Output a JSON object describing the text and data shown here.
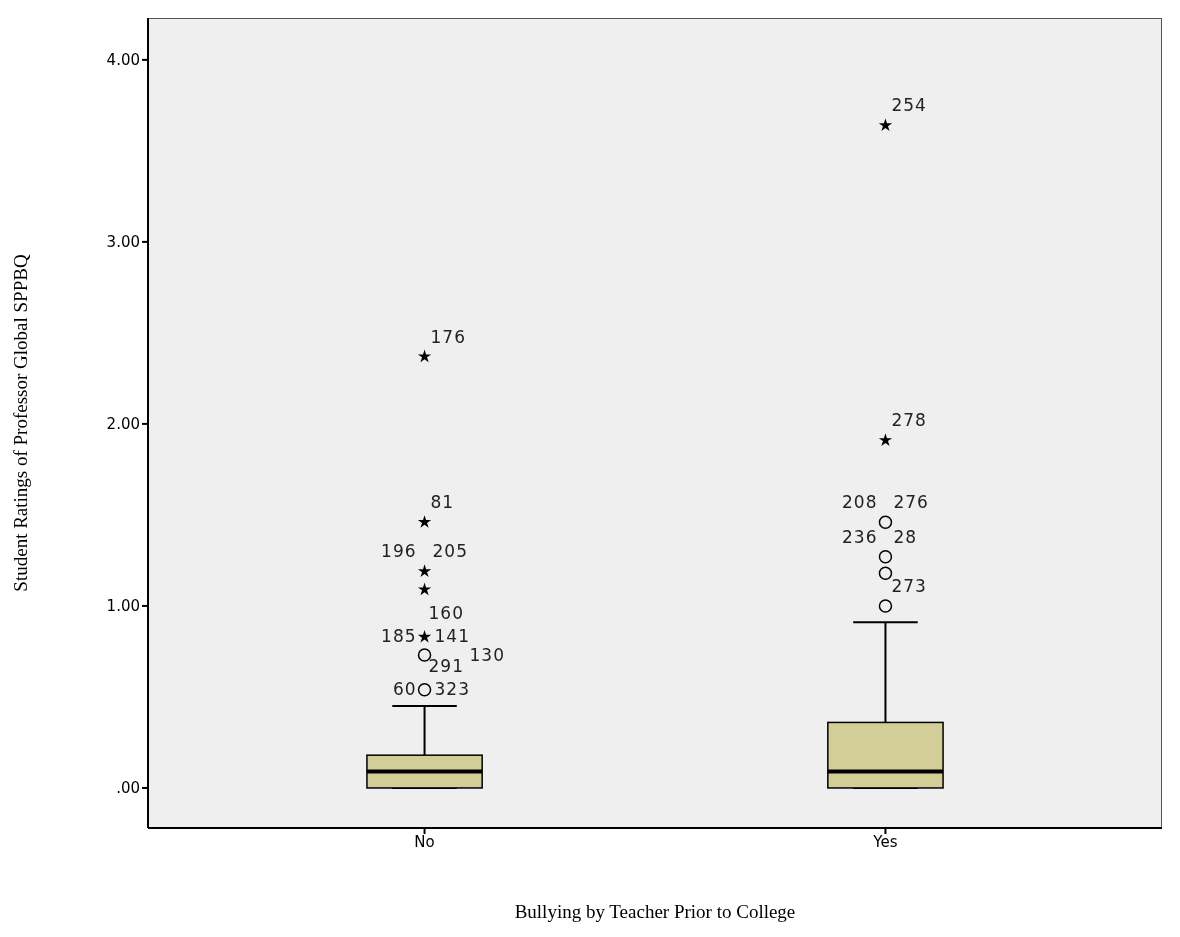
{
  "chart_data": {
    "type": "box",
    "categories": [
      "No",
      "Yes"
    ],
    "xlabel": "Bullying by Teacher Prior to College",
    "ylabel": "Student Ratings of Professor Global SPPBQ",
    "ylim": [
      -0.22,
      4.23
    ],
    "yticks": [
      {
        "value": 0,
        "label": ".00"
      },
      {
        "value": 1,
        "label": "1.00"
      },
      {
        "value": 2,
        "label": "2.00"
      },
      {
        "value": 3,
        "label": "3.00"
      },
      {
        "value": 4,
        "label": "4.00"
      }
    ],
    "grid": false,
    "series": [
      {
        "type": "box",
        "color": "#d3cd97",
        "boxes": [
          {
            "low": 0,
            "q1": 0,
            "median": 0.09,
            "q3": 0.18,
            "high": 0.45
          },
          {
            "low": 0,
            "q1": 0,
            "median": 0.09,
            "q3": 0.36,
            "high": 0.91
          }
        ]
      },
      {
        "type": "scatter",
        "marker": "circle",
        "color": "#000000",
        "x": [
          "No",
          "No",
          "Yes",
          "Yes",
          "Yes",
          "Yes"
        ],
        "values": [
          0.73,
          0.54,
          1.46,
          1.27,
          1.18,
          1.0
        ]
      },
      {
        "type": "scatter",
        "marker": "star",
        "color": "#000000",
        "x": [
          "No",
          "No",
          "No",
          "No",
          "No",
          "Yes",
          "Yes"
        ],
        "values": [
          2.37,
          1.46,
          1.19,
          1.09,
          0.83,
          3.64,
          1.91
        ]
      }
    ],
    "annotations": [
      {
        "text": "176",
        "x": "No",
        "y": 2.37
      },
      {
        "text": "81",
        "x": "No",
        "y": 1.46
      },
      {
        "text": "196",
        "x": "No",
        "y": 1.19
      },
      {
        "text": "205",
        "x": "No",
        "y": 1.19
      },
      {
        "text": "185",
        "x": "No",
        "y": 0.83
      },
      {
        "text": "160",
        "x": "No",
        "y": 0.83
      },
      {
        "text": "141",
        "x": "No",
        "y": 0.83
      },
      {
        "text": "130",
        "x": "No",
        "y": 0.73
      },
      {
        "text": "60",
        "x": "No",
        "y": 0.54
      },
      {
        "text": "291",
        "x": "No",
        "y": 0.54
      },
      {
        "text": "323",
        "x": "No",
        "y": 0.54
      },
      {
        "text": "254",
        "x": "Yes",
        "y": 3.64
      },
      {
        "text": "278",
        "x": "Yes",
        "y": 1.91
      },
      {
        "text": "208",
        "x": "Yes",
        "y": 1.46
      },
      {
        "text": "276",
        "x": "Yes",
        "y": 1.46
      },
      {
        "text": "236",
        "x": "Yes",
        "y": 1.27
      },
      {
        "text": "28",
        "x": "Yes",
        "y": 1.27
      },
      {
        "text": "273",
        "x": "Yes",
        "y": 1.0
      }
    ]
  }
}
